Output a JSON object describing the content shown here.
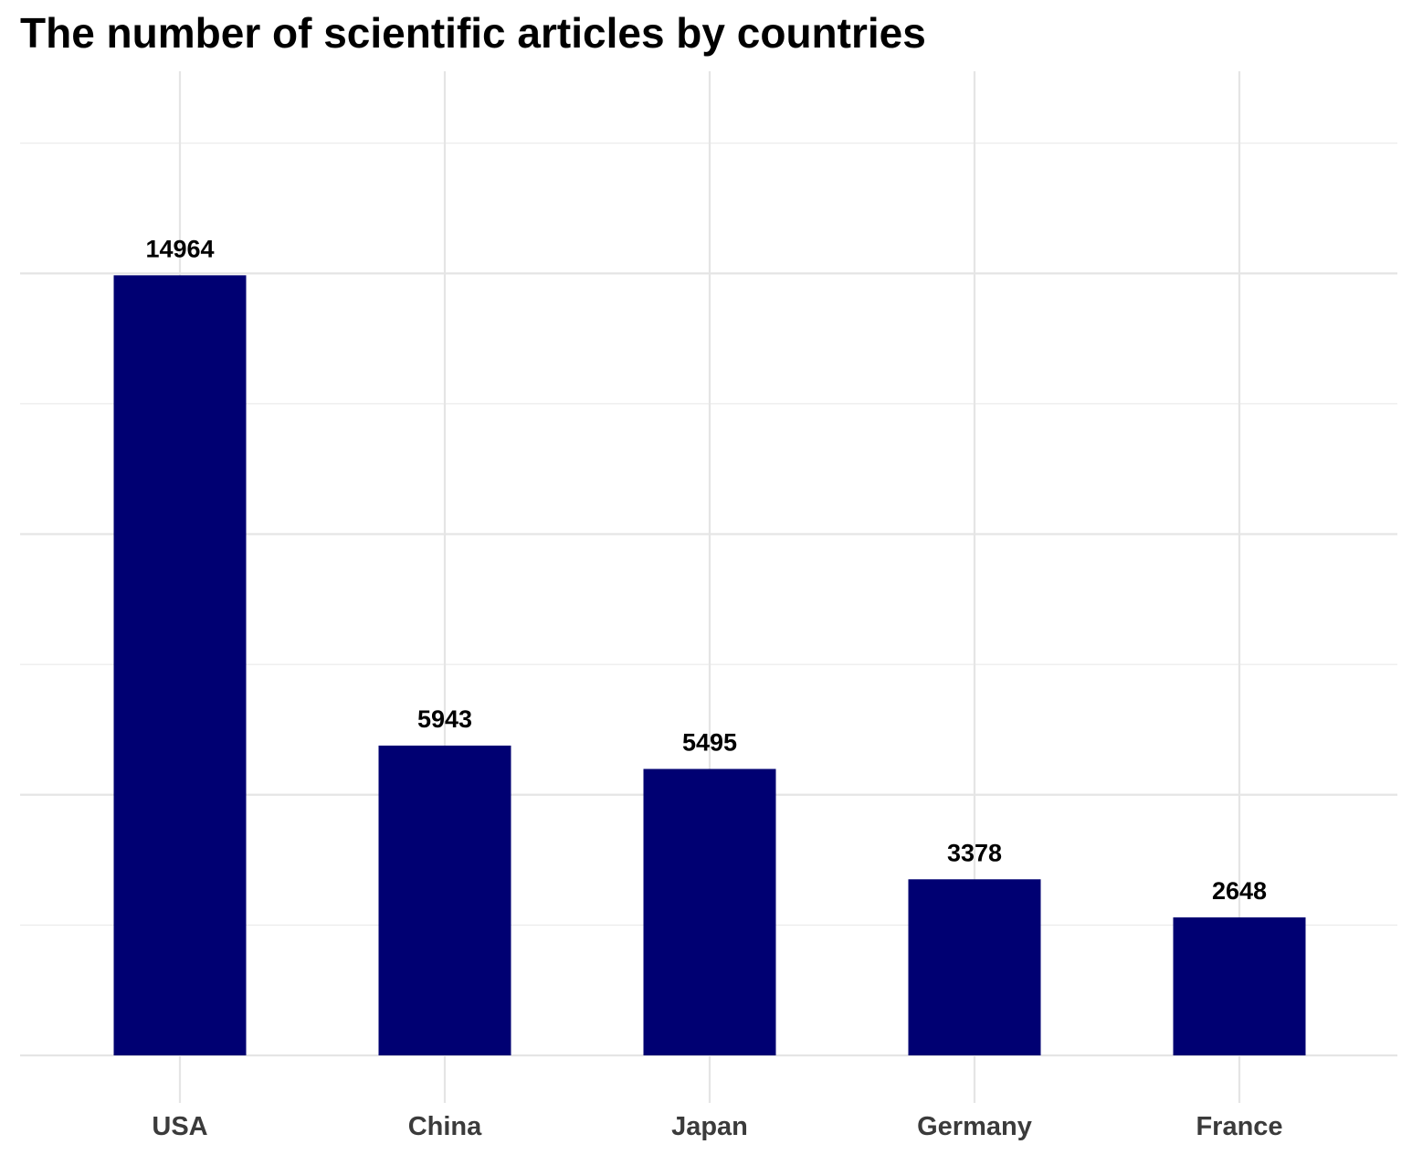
{
  "chart_data": {
    "type": "bar",
    "title": "The number of scientific articles by countries",
    "xlabel": "",
    "ylabel": "",
    "categories": [
      "USA",
      "China",
      "Japan",
      "Germany",
      "France"
    ],
    "values": [
      14964,
      5943,
      5495,
      3378,
      2648
    ],
    "data_labels": [
      "14964",
      "5943",
      "5495",
      "3378",
      "2648"
    ],
    "ylim": [
      0,
      17500
    ],
    "y_major_breaks": [
      0,
      5000,
      10000,
      15000
    ],
    "y_minor_breaks": [
      2500,
      7500,
      12500,
      17500
    ],
    "y_tick_labels_shown": false,
    "grid": true,
    "legend": "none",
    "bar_color": "#000072",
    "grid_color": "#e5e5e5"
  }
}
